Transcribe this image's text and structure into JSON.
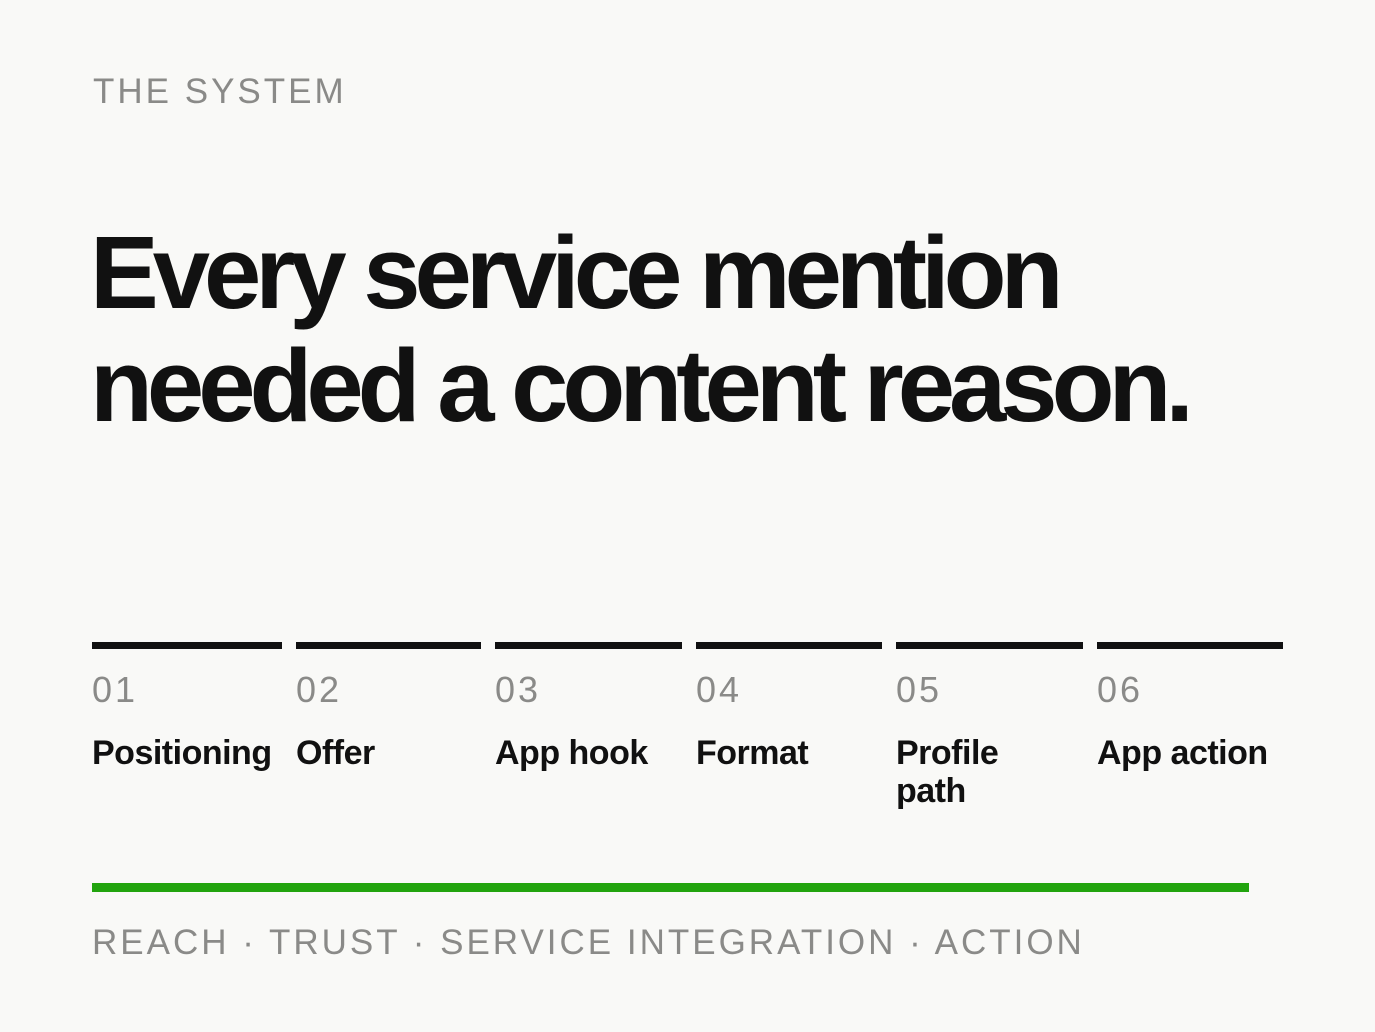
{
  "eyebrow": "THE SYSTEM",
  "headline": "Every service mention needed a content reason.",
  "steps": [
    {
      "number": "01",
      "label": "Positioning"
    },
    {
      "number": "02",
      "label": "Offer"
    },
    {
      "number": "03",
      "label": "App hook"
    },
    {
      "number": "04",
      "label": "Format"
    },
    {
      "number": "05",
      "label": "Profile path"
    },
    {
      "number": "06",
      "label": "App action"
    }
  ],
  "footer": "REACH · TRUST · SERVICE INTEGRATION · ACTION",
  "colors": {
    "background": "#f9f9f7",
    "text": "#111111",
    "muted": "#8a8a88",
    "accent": "#22a40e"
  }
}
